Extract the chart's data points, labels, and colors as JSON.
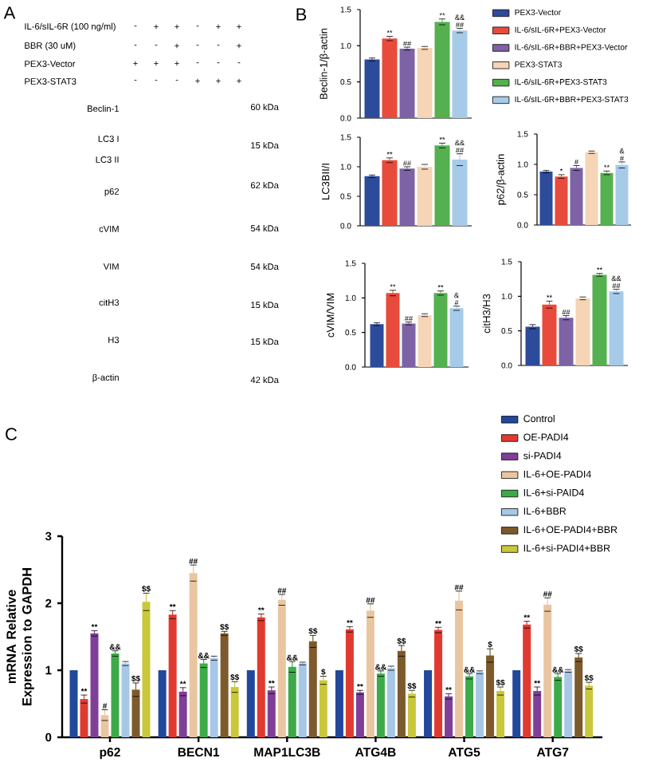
{
  "chart_data": [
    {
      "type": "other",
      "title": "A",
      "annotations": [
        "IL-6/sIL-6R (100 ng/ml)",
        "BBR (30 uM)",
        "PEX3-Vector",
        "PEX3-STAT3",
        "-",
        "+",
        "+",
        "-",
        "+",
        "+",
        "-",
        "-",
        "+",
        "-",
        "-",
        "+",
        "+",
        "+",
        "+",
        "-",
        "-",
        "-",
        "-",
        "-",
        "-",
        "+",
        "+",
        "+",
        "Beclin-1",
        "LC3 I",
        "LC3 II",
        "p62",
        "cVIM",
        "VIM",
        "citH3",
        "H3",
        "β-actin",
        "60 kDa",
        "15 kDa",
        "62 kDa",
        "54 kDa",
        "54 kDa",
        "15 kDa",
        "15 kDa",
        "42 kDa"
      ]
    },
    {
      "type": "bar",
      "title": "B",
      "ylabel": "Beclin-1/β-actin",
      "categories": [
        null
      ],
      "series": [
        {
          "name": "PEX3-Vector",
          "color": "#2d4b9b",
          "values": [
            0.81
          ],
          "errors": [
            0.02
          ]
        },
        {
          "name": "IL-6/sIL-6R+PEX3-Vector",
          "color": "#e84b3c",
          "values": [
            1.1
          ],
          "errors": [
            0.03
          ],
          "value_labels": [
            "**"
          ]
        },
        {
          "name": "IL-6/sIL-6R+BBR+PEX3-Vector",
          "color": "#7e62a6",
          "values": [
            0.96
          ],
          "errors": [
            0.02
          ],
          "value_labels": [
            "##"
          ]
        },
        {
          "name": "PEX3-STAT3",
          "color": "#f5d5b5",
          "values": [
            0.97
          ],
          "errors": [
            0.02
          ]
        },
        {
          "name": "IL-6/sIL-6R+PEX3-STAT3",
          "color": "#55b04f",
          "values": [
            1.33
          ],
          "errors": [
            0.04
          ],
          "value_labels": [
            "**"
          ]
        },
        {
          "name": "IL-6/sIL-6R+BBR+PEX3-STAT3",
          "color": "#a6cbe8",
          "values": [
            1.21
          ],
          "errors": [
            0.03
          ],
          "value_labels": [
            "&&\n##"
          ]
        }
      ],
      "ylim": [
        0,
        1.5
      ],
      "yticks": [
        {
          "value": 0,
          "label": "0.0"
        },
        {
          "value": 0.5,
          "label": "0.5"
        },
        {
          "value": 1,
          "label": "1.0"
        },
        {
          "value": 1.5,
          "label": "1.5"
        }
      ],
      "tick_labels": "y",
      "legend": "right"
    },
    {
      "type": "bar",
      "ylabel": "LC3BII/I",
      "categories": [
        null
      ],
      "series": [
        {
          "color": "#2d4b9b",
          "values": [
            0.84
          ],
          "errors": [
            0.02
          ]
        },
        {
          "color": "#e84b3c",
          "values": [
            1.11
          ],
          "errors": [
            0.04
          ],
          "value_labels": [
            "**"
          ]
        },
        {
          "color": "#7e62a6",
          "values": [
            0.97
          ],
          "errors": [
            0.03
          ],
          "value_labels": [
            "##"
          ]
        },
        {
          "color": "#f5d5b5",
          "values": [
            1.0
          ],
          "errors": [
            0.04
          ]
        },
        {
          "color": "#55b04f",
          "values": [
            1.36
          ],
          "errors": [
            0.04
          ],
          "value_labels": [
            "**"
          ]
        },
        {
          "color": "#a6cbe8",
          "values": [
            1.12
          ],
          "errors": [
            0.1
          ],
          "value_labels": [
            "&&\n##"
          ]
        }
      ],
      "ylim": [
        0,
        1.5
      ],
      "yticks": [
        {
          "value": 0,
          "label": "0.0"
        },
        {
          "value": 0.5,
          "label": "0.5"
        },
        {
          "value": 1,
          "label": "1.0"
        },
        {
          "value": 1.5,
          "label": "1.5"
        }
      ],
      "tick_labels": "y"
    },
    {
      "type": "bar",
      "ylabel": "p62/β-actin",
      "categories": [
        null
      ],
      "series": [
        {
          "color": "#2d4b9b",
          "values": [
            0.88
          ],
          "errors": [
            0.02
          ]
        },
        {
          "color": "#e84b3c",
          "values": [
            0.8
          ],
          "errors": [
            0.03
          ],
          "value_labels": [
            "*"
          ]
        },
        {
          "color": "#7e62a6",
          "values": [
            0.94
          ],
          "errors": [
            0.04
          ],
          "value_labels": [
            "#"
          ]
        },
        {
          "color": "#f5d5b5",
          "values": [
            1.2
          ],
          "errors": [
            0.02
          ]
        },
        {
          "color": "#55b04f",
          "values": [
            0.86
          ],
          "errors": [
            0.03
          ],
          "value_labels": [
            "**"
          ]
        },
        {
          "color": "#a6cbe8",
          "values": [
            0.99
          ],
          "errors": [
            0.05
          ],
          "value_labels": [
            "&\n#"
          ]
        }
      ],
      "ylim": [
        0,
        1.5
      ],
      "yticks": [
        {
          "value": 0,
          "label": "0.0"
        },
        {
          "value": 0.5,
          "label": "0.5"
        },
        {
          "value": 1,
          "label": "1.0"
        },
        {
          "value": 1.5,
          "label": "1.5"
        }
      ],
      "tick_labels": "y"
    },
    {
      "type": "bar",
      "ylabel": "cVIM/VIM",
      "categories": [
        null
      ],
      "series": [
        {
          "color": "#2d4b9b",
          "values": [
            0.62
          ],
          "errors": [
            0.02
          ]
        },
        {
          "color": "#e84b3c",
          "values": [
            1.07
          ],
          "errors": [
            0.04
          ],
          "value_labels": [
            "**"
          ]
        },
        {
          "color": "#7e62a6",
          "values": [
            0.63
          ],
          "errors": [
            0.02
          ],
          "value_labels": [
            "##"
          ]
        },
        {
          "color": "#f5d5b5",
          "values": [
            0.75
          ],
          "errors": [
            0.02
          ]
        },
        {
          "color": "#55b04f",
          "values": [
            1.07
          ],
          "errors": [
            0.03
          ],
          "value_labels": [
            "**"
          ]
        },
        {
          "color": "#a6cbe8",
          "values": [
            0.85
          ],
          "errors": [
            0.03
          ],
          "value_labels": [
            "&\n#"
          ]
        }
      ],
      "ylim": [
        0,
        1.5
      ],
      "yticks": [
        {
          "value": 0,
          "label": "0.0"
        },
        {
          "value": 0.5,
          "label": "0.5"
        },
        {
          "value": 1,
          "label": "1.0"
        },
        {
          "value": 1.5,
          "label": "1.5"
        }
      ],
      "tick_labels": "y"
    },
    {
      "type": "bar",
      "ylabel": "citH3/H3",
      "categories": [
        null
      ],
      "series": [
        {
          "color": "#2d4b9b",
          "values": [
            0.56
          ],
          "errors": [
            0.03
          ]
        },
        {
          "color": "#e84b3c",
          "values": [
            0.88
          ],
          "errors": [
            0.05
          ],
          "value_labels": [
            "**"
          ]
        },
        {
          "color": "#7e62a6",
          "values": [
            0.69
          ],
          "errors": [
            0.03
          ],
          "value_labels": [
            "##"
          ]
        },
        {
          "color": "#f5d5b5",
          "values": [
            0.97
          ],
          "errors": [
            0.02
          ]
        },
        {
          "color": "#55b04f",
          "values": [
            1.31
          ],
          "errors": [
            0.02
          ],
          "value_labels": [
            "**"
          ]
        },
        {
          "color": "#a6cbe8",
          "values": [
            1.07
          ],
          "errors": [
            0.03
          ],
          "value_labels": [
            "&&\n##"
          ]
        }
      ],
      "ylim": [
        0,
        1.5
      ],
      "yticks": [
        {
          "value": 0,
          "label": "0.0"
        },
        {
          "value": 0.5,
          "label": "0.5"
        },
        {
          "value": 1,
          "label": "1.0"
        },
        {
          "value": 1.5,
          "label": "1.5"
        }
      ],
      "tick_labels": "y"
    },
    {
      "type": "bar",
      "title": "C",
      "ylabel": "mRNA Relative Expression to GAPDH",
      "categories": [
        "p62",
        "BECN1",
        "MAP1LC3B",
        "ATG4B",
        "ATG5",
        "ATG7"
      ],
      "series": [
        {
          "name": "Control",
          "color": "#21489a",
          "values": [
            1,
            1,
            1,
            1,
            1,
            1
          ]
        },
        {
          "name": "OE-PADI4",
          "color": "#e03a30",
          "values": [
            0.57,
            1.83,
            1.79,
            1.61,
            1.6,
            1.68
          ],
          "errors": [
            0.06,
            0.06,
            0.05,
            0.04,
            0.04,
            0.05
          ],
          "value_labels": [
            "**",
            "**",
            "**",
            "**",
            "**",
            "**"
          ]
        },
        {
          "name": "si-PADI4",
          "color": "#7f3f98",
          "values": [
            1.55,
            0.68,
            0.7,
            0.67,
            0.61,
            0.69
          ],
          "errors": [
            0.04,
            0.06,
            0.05,
            0.03,
            0.04,
            0.06
          ],
          "value_labels": [
            "**",
            "**",
            "**",
            "**",
            "**",
            "**"
          ]
        },
        {
          "name": "IL-6+OE-PADI4",
          "color": "#e9c6a1",
          "values": [
            0.33,
            2.45,
            2.05,
            1.89,
            2.04,
            1.98
          ],
          "errors": [
            0.08,
            0.12,
            0.08,
            0.1,
            0.14,
            0.1
          ],
          "value_labels": [
            "#",
            "##",
            "##",
            "##",
            "##",
            "##"
          ]
        },
        {
          "name": "IL-6+si-PAID4",
          "color": "#3daa4a",
          "values": [
            1.25,
            1.1,
            1.05,
            0.95,
            0.91,
            0.9
          ],
          "errors": [
            0.04,
            0.06,
            0.08,
            0.04,
            0.04,
            0.05
          ],
          "value_labels": [
            "&&",
            "&&",
            "&&",
            "&&",
            "&&",
            "&&"
          ]
        },
        {
          "name": "IL-6+BBR",
          "color": "#a7c7e7",
          "values": [
            1.1,
            1.18,
            1.1,
            1.03,
            0.97,
            0.99
          ],
          "errors": [
            0.03,
            0.03,
            0.02,
            0.03,
            0.02,
            0.02
          ]
        },
        {
          "name": "IL-6+OE-PADI4+BBR",
          "color": "#7d5a2c",
          "values": [
            0.71,
            1.55,
            1.43,
            1.29,
            1.22,
            1.19
          ],
          "errors": [
            0.1,
            0.03,
            0.09,
            0.08,
            0.1,
            0.06
          ],
          "value_labels": [
            "$$",
            "$$",
            "$$",
            "$$",
            "$",
            "$$"
          ]
        },
        {
          "name": "IL-6+si-PADI4+BBR",
          "color": "#c9c83b",
          "values": [
            2.02,
            0.75,
            0.85,
            0.65,
            0.69,
            0.77
          ],
          "errors": [
            0.13,
            0.08,
            0.06,
            0.05,
            0.06,
            0.05
          ],
          "value_labels": [
            "$$",
            "$$",
            "$",
            "$$",
            "$$",
            "$$"
          ]
        }
      ],
      "ylim": [
        0,
        3
      ],
      "yticks": [
        0,
        1,
        2,
        3
      ],
      "legend": "top right"
    }
  ]
}
